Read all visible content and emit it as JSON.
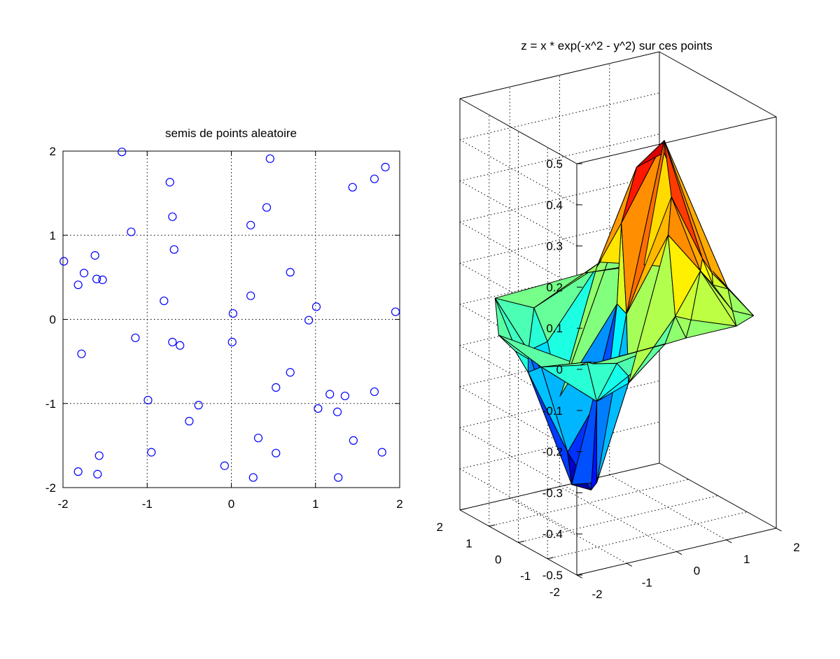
{
  "figure": {
    "background": "#ffffff",
    "marker_color": "#0000ff",
    "edge_color": "#000000"
  },
  "chart_data": [
    {
      "type": "scatter",
      "title": "semis de points aleatoire",
      "xlabel": "",
      "ylabel": "",
      "xlim": [
        -2,
        2
      ],
      "ylim": [
        -2,
        2
      ],
      "xticks": [
        "-2",
        "-1",
        "0",
        "1",
        "2"
      ],
      "yticks": [
        "2",
        "1",
        "0",
        "-1",
        "-2"
      ],
      "grid": true,
      "marker": "open-circle",
      "color": "#0000ff",
      "points": [
        {
          "x": -1.3,
          "y": 1.99
        },
        {
          "x": 0.46,
          "y": 1.91
        },
        {
          "x": 1.83,
          "y": 1.81
        },
        {
          "x": 1.7,
          "y": 1.67
        },
        {
          "x": 1.44,
          "y": 1.57
        },
        {
          "x": -0.73,
          "y": 1.63
        },
        {
          "x": 0.42,
          "y": 1.33
        },
        {
          "x": -0.7,
          "y": 1.22
        },
        {
          "x": 0.23,
          "y": 1.12
        },
        {
          "x": -1.19,
          "y": 1.04
        },
        {
          "x": -0.68,
          "y": 0.83
        },
        {
          "x": -1.62,
          "y": 0.76
        },
        {
          "x": -1.99,
          "y": 0.69
        },
        {
          "x": -1.75,
          "y": 0.55
        },
        {
          "x": 0.7,
          "y": 0.56
        },
        {
          "x": -1.6,
          "y": 0.48
        },
        {
          "x": -1.53,
          "y": 0.47
        },
        {
          "x": -1.82,
          "y": 0.41
        },
        {
          "x": 0.23,
          "y": 0.28
        },
        {
          "x": -0.8,
          "y": 0.22
        },
        {
          "x": 1.01,
          "y": 0.15
        },
        {
          "x": 1.95,
          "y": 0.09
        },
        {
          "x": 0.02,
          "y": 0.07
        },
        {
          "x": 0.92,
          "y": -0.01
        },
        {
          "x": -1.14,
          "y": -0.22
        },
        {
          "x": -0.7,
          "y": -0.27
        },
        {
          "x": 0.01,
          "y": -0.27
        },
        {
          "x": -0.61,
          "y": -0.31
        },
        {
          "x": -1.78,
          "y": -0.41
        },
        {
          "x": 0.7,
          "y": -0.63
        },
        {
          "x": 0.53,
          "y": -0.81
        },
        {
          "x": 1.17,
          "y": -0.89
        },
        {
          "x": 1.35,
          "y": -0.91
        },
        {
          "x": 1.7,
          "y": -0.86
        },
        {
          "x": -0.99,
          "y": -0.96
        },
        {
          "x": -0.39,
          "y": -1.02
        },
        {
          "x": 1.03,
          "y": -1.06
        },
        {
          "x": 1.26,
          "y": -1.1
        },
        {
          "x": -0.5,
          "y": -1.21
        },
        {
          "x": 0.32,
          "y": -1.41
        },
        {
          "x": 1.45,
          "y": -1.44
        },
        {
          "x": -0.95,
          "y": -1.58
        },
        {
          "x": 0.53,
          "y": -1.59
        },
        {
          "x": 1.79,
          "y": -1.58
        },
        {
          "x": -1.57,
          "y": -1.62
        },
        {
          "x": -0.08,
          "y": -1.74
        },
        {
          "x": -1.82,
          "y": -1.81
        },
        {
          "x": -1.59,
          "y": -1.84
        },
        {
          "x": 0.26,
          "y": -1.88
        },
        {
          "x": 1.27,
          "y": -1.88
        }
      ]
    },
    {
      "type": "surface",
      "title": "z = x * exp(-x^2 - y^2)   sur ces points",
      "xlabel": "",
      "ylabel": "",
      "zlabel": "",
      "xlim": [
        -2,
        2
      ],
      "ylim": [
        -2,
        2
      ],
      "zlim": [
        -0.5,
        0.5
      ],
      "xticks": [
        "-2",
        "-1",
        "0",
        "1",
        "2"
      ],
      "yticks": [
        "-2",
        "-1",
        "0",
        "1",
        "2"
      ],
      "zticks": [
        "0.5",
        "0.4",
        "0.3",
        "0.2",
        "0.1",
        "0",
        "-0.1",
        "-0.2",
        "-0.3",
        "-0.4",
        "-0.5"
      ],
      "grid": true,
      "colormap": "jet",
      "function": "z = x * exp(-x^2 - y^2)"
    }
  ]
}
